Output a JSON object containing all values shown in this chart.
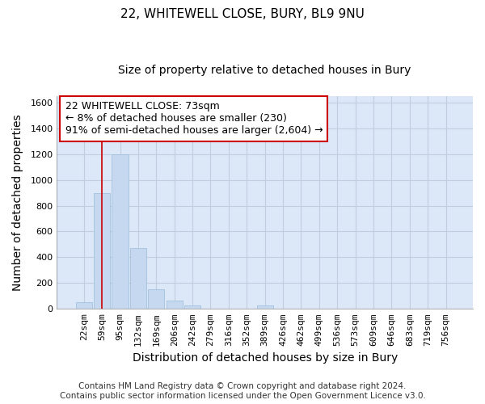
{
  "title1": "22, WHITEWELL CLOSE, BURY, BL9 9NU",
  "title2": "Size of property relative to detached houses in Bury",
  "xlabel": "Distribution of detached houses by size in Bury",
  "ylabel": "Number of detached properties",
  "categories": [
    "22sqm",
    "59sqm",
    "95sqm",
    "132sqm",
    "169sqm",
    "206sqm",
    "242sqm",
    "279sqm",
    "316sqm",
    "352sqm",
    "389sqm",
    "426sqm",
    "462sqm",
    "499sqm",
    "536sqm",
    "573sqm",
    "609sqm",
    "646sqm",
    "683sqm",
    "719sqm",
    "756sqm"
  ],
  "values": [
    55,
    900,
    1195,
    470,
    150,
    65,
    30,
    0,
    0,
    0,
    25,
    0,
    0,
    0,
    0,
    0,
    0,
    0,
    0,
    0,
    0
  ],
  "bar_color": "#c5d8ef",
  "bar_edge_color": "#9bbcd8",
  "vline_x_index": 1,
  "vline_color": "#cc0000",
  "annotation_text": "22 WHITEWELL CLOSE: 73sqm\n← 8% of detached houses are smaller (230)\n91% of semi-detached houses are larger (2,604) →",
  "annotation_box_color": "#ffffff",
  "annotation_box_edge_color": "#cc0000",
  "ylim": [
    0,
    1650
  ],
  "yticks": [
    0,
    200,
    400,
    600,
    800,
    1000,
    1200,
    1400,
    1600
  ],
  "footnote": "Contains HM Land Registry data © Crown copyright and database right 2024.\nContains public sector information licensed under the Open Government Licence v3.0.",
  "bg_color": "#ffffff",
  "plot_bg_color": "#dce8f8",
  "grid_color": "#c0cfe0",
  "title1_fontsize": 11,
  "title2_fontsize": 10,
  "tick_fontsize": 8,
  "label_fontsize": 10,
  "footnote_fontsize": 7.5
}
